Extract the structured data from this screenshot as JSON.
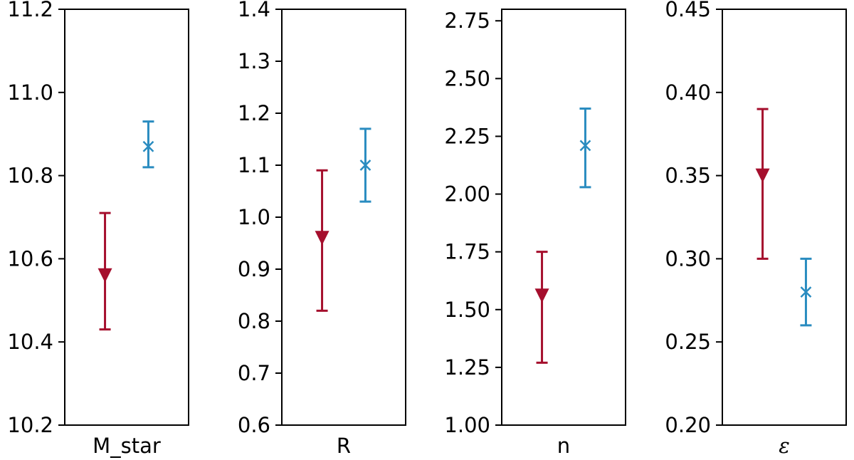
{
  "colors": {
    "red": "#a50f2d",
    "blue": "#2a8cc0"
  },
  "chart_data": [
    {
      "type": "scatter",
      "xlabel": "M_star",
      "ylim": [
        10.2,
        11.2
      ],
      "yticks": [
        "10.2",
        "10.4",
        "10.6",
        "10.8",
        "11.0",
        "11.2"
      ],
      "series": [
        {
          "marker": "triangle-down",
          "color": "#a50f2d",
          "x": -0.35,
          "y": 10.56,
          "yerr_low": 10.43,
          "yerr_high": 10.71
        },
        {
          "marker": "x",
          "color": "#2a8cc0",
          "x": 0.35,
          "y": 10.87,
          "yerr_low": 10.82,
          "yerr_high": 10.93
        }
      ]
    },
    {
      "type": "scatter",
      "xlabel": "R",
      "ylim": [
        0.6,
        1.4
      ],
      "yticks": [
        "0.6",
        "0.7",
        "0.8",
        "0.9",
        "1.0",
        "1.1",
        "1.2",
        "1.3",
        "1.4"
      ],
      "series": [
        {
          "marker": "triangle-down",
          "color": "#a50f2d",
          "x": -0.35,
          "y": 0.96,
          "yerr_low": 0.82,
          "yerr_high": 1.09
        },
        {
          "marker": "x",
          "color": "#2a8cc0",
          "x": 0.35,
          "y": 1.1,
          "yerr_low": 1.03,
          "yerr_high": 1.17
        }
      ]
    },
    {
      "type": "scatter",
      "xlabel": "n",
      "ylim": [
        1.0,
        2.8
      ],
      "yticks": [
        "1.00",
        "1.25",
        "1.50",
        "1.75",
        "2.00",
        "2.25",
        "2.50",
        "2.75"
      ],
      "series": [
        {
          "marker": "triangle-down",
          "color": "#a50f2d",
          "x": -0.35,
          "y": 1.56,
          "yerr_low": 1.27,
          "yerr_high": 1.75
        },
        {
          "marker": "x",
          "color": "#2a8cc0",
          "x": 0.35,
          "y": 2.21,
          "yerr_low": 2.03,
          "yerr_high": 2.37
        }
      ]
    },
    {
      "type": "scatter",
      "xlabel": "ε",
      "ylim": [
        0.2,
        0.45
      ],
      "yticks": [
        "0.20",
        "0.25",
        "0.30",
        "0.35",
        "0.40",
        "0.45"
      ],
      "series": [
        {
          "marker": "triangle-down",
          "color": "#a50f2d",
          "x": -0.35,
          "y": 0.35,
          "yerr_low": 0.3,
          "yerr_high": 0.39
        },
        {
          "marker": "x",
          "color": "#2a8cc0",
          "x": 0.35,
          "y": 0.28,
          "yerr_low": 0.26,
          "yerr_high": 0.3
        }
      ]
    }
  ]
}
